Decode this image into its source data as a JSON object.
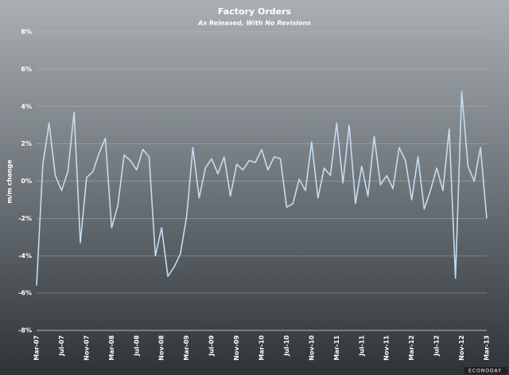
{
  "chart_data": {
    "type": "line",
    "title": "Factory Orders",
    "subtitle": "As Released, With No Revisions",
    "y_label": "m/m change",
    "watermark": "ECONODAY",
    "color": "#c4dcf2",
    "grid": true,
    "categories": [
      "Mar-07",
      null,
      null,
      null,
      "Jul-07",
      null,
      null,
      null,
      "Nov-07",
      null,
      null,
      null,
      "Mar-08",
      null,
      null,
      null,
      "Jul-08",
      null,
      null,
      null,
      "Nov-08",
      null,
      null,
      null,
      "Mar-09",
      null,
      null,
      null,
      "Jul-09",
      null,
      null,
      null,
      "Nov-09",
      null,
      null,
      null,
      "Mar-10",
      null,
      null,
      null,
      "Jul-10",
      null,
      null,
      null,
      "Nov-10",
      null,
      null,
      null,
      "Mar-11",
      null,
      null,
      null,
      "Jul-11",
      null,
      null,
      null,
      "Nov-11",
      null,
      null,
      null,
      "Mar-12",
      null,
      null,
      null,
      "Jul-12",
      null,
      null,
      null,
      "Nov-12",
      null,
      null,
      null,
      "Mar-13"
    ],
    "values": [
      -5.6,
      0.9,
      3.1,
      0.3,
      -0.5,
      0.5,
      3.7,
      -3.3,
      0.2,
      0.5,
      1.5,
      2.3,
      -2.5,
      -1.3,
      1.4,
      1.1,
      0.6,
      1.7,
      1.3,
      -4.0,
      -2.5,
      -5.1,
      -4.6,
      -3.9,
      -1.9,
      1.8,
      -0.9,
      0.7,
      1.2,
      0.4,
      1.3,
      -0.8,
      0.9,
      0.6,
      1.1,
      1.0,
      1.7,
      0.6,
      1.3,
      1.2,
      -1.4,
      -1.2,
      0.1,
      -0.5,
      2.1,
      -0.9,
      0.7,
      0.3,
      3.1,
      -0.1,
      3.0,
      -1.2,
      0.8,
      -0.8,
      2.4,
      -0.2,
      0.3,
      -0.4,
      1.8,
      1.1,
      -1.0,
      1.3,
      -1.5,
      -0.5,
      0.7,
      -0.5,
      2.8,
      -5.2,
      4.8,
      0.8,
      0.0,
      1.8,
      -2.0
    ],
    "ylim": [
      -8,
      8
    ],
    "yticks": [
      {
        "value": -8,
        "label": "-8%"
      },
      {
        "value": -6,
        "label": "-6%"
      },
      {
        "value": -4,
        "label": "-4%"
      },
      {
        "value": -2,
        "label": "-2%"
      },
      {
        "value": 0,
        "label": "0%"
      },
      {
        "value": 2,
        "label": "2%"
      },
      {
        "value": 4,
        "label": "4%"
      },
      {
        "value": 6,
        "label": "6%"
      },
      {
        "value": 8,
        "label": "8%"
      }
    ]
  }
}
